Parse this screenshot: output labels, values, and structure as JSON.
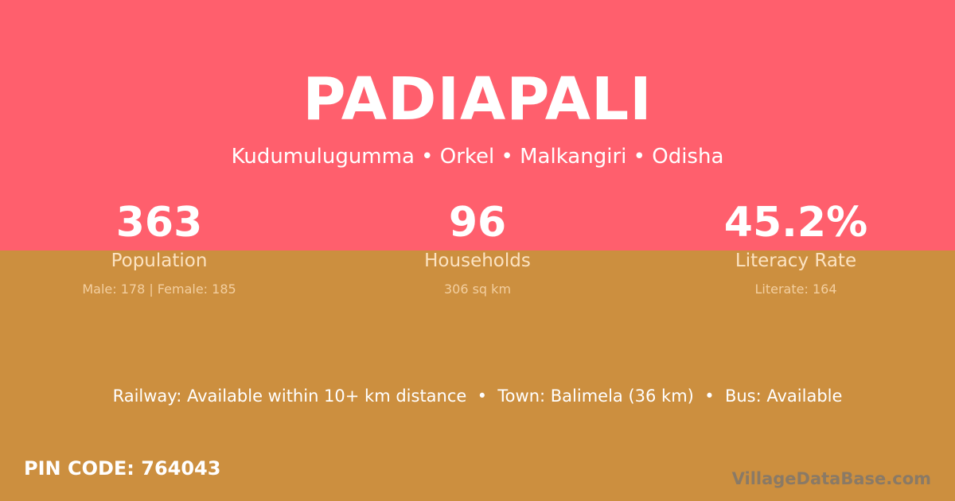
{
  "village": "PADIAPALI",
  "location": "Kudumulugumma • Orkel • Malkangiri • Odisha",
  "stats": [
    {
      "value": "363",
      "label": "Population",
      "detail": "Male: 178 | Female: 185"
    },
    {
      "value": "96",
      "label": "Households",
      "detail": "306 sq km"
    },
    {
      "value": "45.2%",
      "label": "Literacy Rate",
      "detail": "Literate: 164"
    }
  ],
  "connectivity": "Railway: Available within 10+ km distance  •  Town: Balimela (36 km)  •  Bus: Available",
  "pin_code": "PIN CODE: 764043",
  "brand": "VillageDataBase.com",
  "colors": {
    "top": "#FF5F6D",
    "bottom": "#CC8F3F"
  }
}
